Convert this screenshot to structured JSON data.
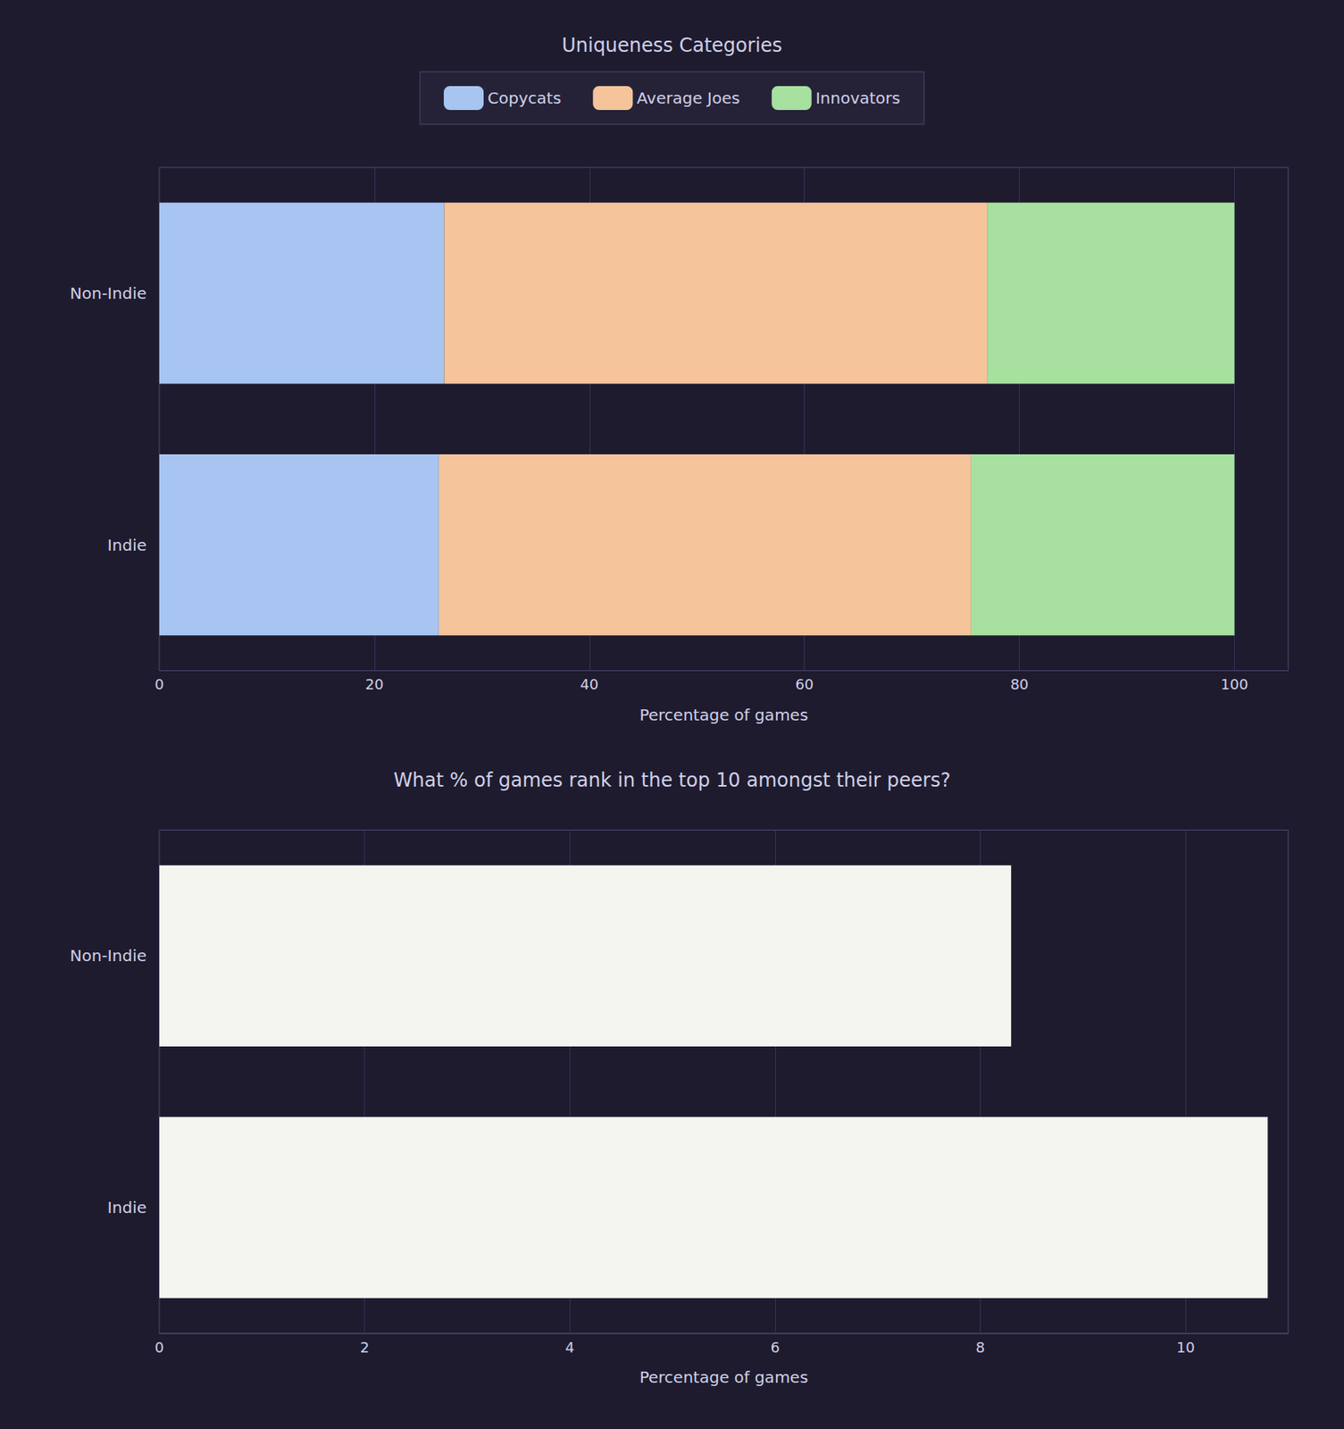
{
  "chart_data": [
    {
      "type": "bar",
      "orientation": "horizontal",
      "stacked": true,
      "categories": [
        "Non-Indie",
        "Indie"
      ],
      "series": [
        {
          "name": "Copycats",
          "color": "#a8c4f0",
          "values": [
            26.5,
            26.0
          ]
        },
        {
          "name": "Average Joes",
          "color": "#f5c49a",
          "values": [
            50.5,
            49.5
          ]
        },
        {
          "name": "Innovators",
          "color": "#a8e0a0",
          "values": [
            23.0,
            24.5
          ]
        }
      ],
      "xlabel": "Percentage of games",
      "xlim": [
        0,
        105
      ],
      "xticks": [
        0,
        20,
        40,
        60,
        80,
        100
      ],
      "grid": true,
      "legend": "top",
      "legend_title": "Uniqueness Categories"
    },
    {
      "type": "bar",
      "orientation": "horizontal",
      "title": "What % of games rank in the top 10 amongst their peers?",
      "categories": [
        "Non-Indie",
        "Indie"
      ],
      "values": [
        8.3,
        10.8
      ],
      "color": "#f5f5f0",
      "xlabel": "Percentage of games",
      "xlim": [
        0,
        11
      ],
      "xticks": [
        0,
        2,
        4,
        6,
        8,
        10
      ],
      "grid": true
    }
  ]
}
